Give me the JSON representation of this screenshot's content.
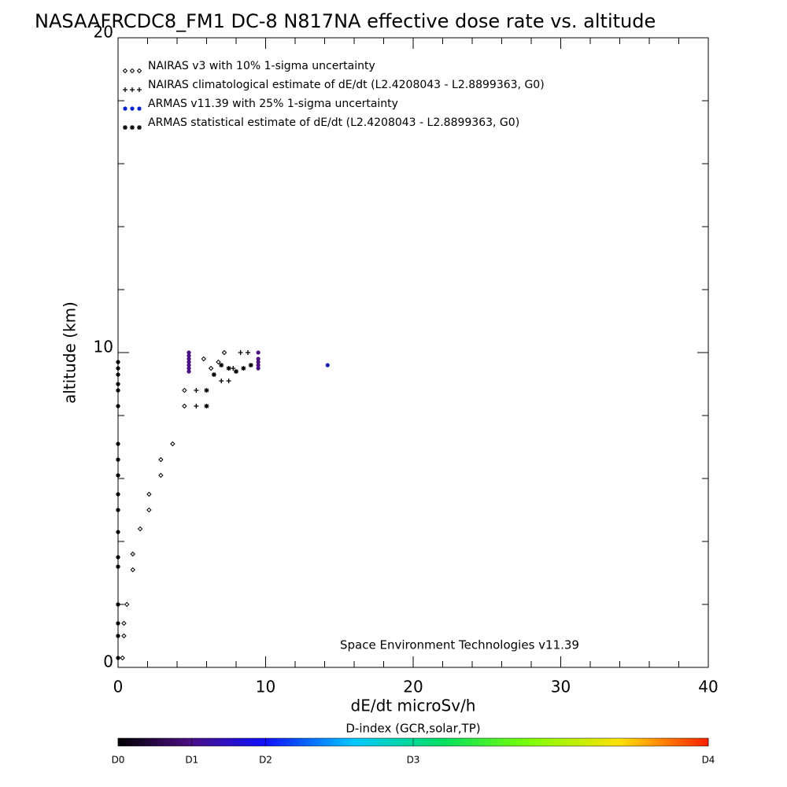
{
  "chart_data": {
    "type": "scatter",
    "title": "NASAAFRCDC8_FM1 DC-8   N817NA effective dose rate vs. altitude",
    "xlabel": "dE/dt microSv/h",
    "ylabel": "altitude (km)",
    "annotation": "Space Environment Technologies v11.39",
    "xlim": [
      0,
      40
    ],
    "ylim": [
      0,
      20
    ],
    "xticks": [
      0,
      10,
      20,
      30,
      40
    ],
    "yticks": [
      0,
      10,
      20
    ],
    "xminorticks": [
      2,
      4,
      6,
      8,
      12,
      14,
      16,
      18,
      22,
      24,
      26,
      28,
      32,
      34,
      36,
      38
    ],
    "yminorticks": [
      2,
      4,
      6,
      8,
      12,
      14,
      16,
      18
    ],
    "series": [
      {
        "name": "NAIRAS v3 with 10% 1-sigma uncertainty",
        "marker": "diamond",
        "color": "#000000",
        "x": [
          0.3,
          0.4,
          0.4,
          0.6,
          1.0,
          1.0,
          1.5,
          2.1,
          2.1,
          2.9,
          2.9,
          3.7,
          4.5,
          4.5,
          5.8,
          6.3,
          6.8,
          7.2
        ],
        "y": [
          0.3,
          1.0,
          1.4,
          2.0,
          3.1,
          3.6,
          4.4,
          5.0,
          5.5,
          6.1,
          6.6,
          7.1,
          8.3,
          8.8,
          9.8,
          9.5,
          9.7,
          10.0
        ]
      },
      {
        "name": "NAIRAS climatological estimate of dE/dt (L2.4208043 - L2.8899363, G0)",
        "marker": "plus",
        "color": "#000000",
        "x": [
          5.3,
          5.3,
          7.0,
          7.5,
          7.8,
          8.3,
          8.8
        ],
        "y": [
          8.3,
          8.8,
          9.1,
          9.1,
          9.5,
          10.0,
          10.0
        ]
      },
      {
        "name": "ARMAS v11.39 with 25% 1-sigma uncertainty",
        "marker": "dot",
        "color": "#0022cc",
        "x": [
          0,
          0,
          0,
          0,
          0,
          0,
          0,
          0,
          0,
          0,
          0,
          0,
          0,
          0,
          0,
          0,
          0,
          0,
          4.8,
          4.8,
          4.8,
          4.8,
          4.8,
          4.8,
          4.8,
          9.5,
          9.5,
          9.5,
          9.5,
          9.5,
          14.2
        ],
        "y": [
          0.3,
          1.0,
          1.4,
          2.0,
          3.2,
          3.5,
          4.3,
          5.0,
          5.5,
          6.1,
          6.6,
          7.1,
          8.3,
          8.8,
          9.0,
          9.3,
          9.5,
          9.7,
          9.4,
          9.5,
          9.6,
          9.7,
          9.8,
          9.9,
          10.0,
          9.5,
          9.6,
          9.7,
          9.8,
          10.0,
          9.6
        ],
        "point_colors": [
          "#000000",
          "#000000",
          "#000000",
          "#000000",
          "#000000",
          "#000000",
          "#000000",
          "#000000",
          "#000000",
          "#000000",
          "#000000",
          "#000000",
          "#000000",
          "#000000",
          "#000000",
          "#000000",
          "#000000",
          "#000000",
          "#4a0f80",
          "#4a0f80",
          "#4a0f80",
          "#4a0f80",
          "#4a0f80",
          "#4a0f80",
          "#4a0f80",
          "#4a0f80",
          "#4a0f80",
          "#4a0f80",
          "#4a0f80",
          "#4a0f80",
          "#1c1caa"
        ]
      },
      {
        "name": "ARMAS statistical estimate of dE/dt (L2.4208043 - L2.8899363, G0)",
        "marker": "star",
        "color": "#000000",
        "x": [
          6.0,
          6.0,
          6.5,
          7.0,
          7.5,
          8.0,
          8.5,
          9.0
        ],
        "y": [
          8.3,
          8.8,
          9.3,
          9.6,
          9.5,
          9.4,
          9.5,
          9.6
        ]
      }
    ],
    "colorbar": {
      "label": "D-index (GCR,solar,TP)",
      "ticks": [
        {
          "value": 0,
          "label": "D0"
        },
        {
          "value": 0.125,
          "label": "D1"
        },
        {
          "value": 0.25,
          "label": "D2"
        },
        {
          "value": 0.5,
          "label": "D3"
        },
        {
          "value": 1,
          "label": "D4"
        }
      ]
    }
  }
}
